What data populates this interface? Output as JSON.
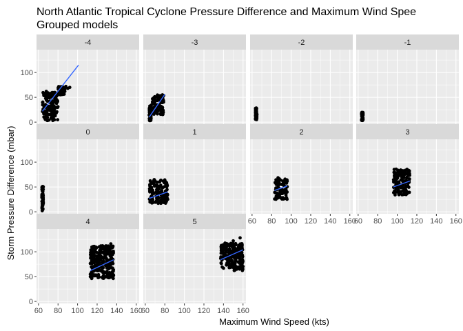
{
  "chart_data": {
    "type": "scatter",
    "title": "North Atlantic Tropical Cyclone Pressure Difference and Maximum Wind Spee",
    "subtitle": "Grouped models",
    "xlabel": "Maximum Wind Speed (kts)",
    "ylabel": "Storm Pressure Difference (mbar)",
    "xlim": [
      58,
      163
    ],
    "ylim": [
      -4,
      146
    ],
    "x_ticks": [
      60,
      80,
      100,
      120,
      140,
      160
    ],
    "y_ticks": [
      0,
      50,
      100
    ],
    "grid": true,
    "facet_layout": "4 columns, 3 rows",
    "facet_strip_color": "#d9d9d9",
    "panel_background": "#ebebeb",
    "point_color": "#000000",
    "fit_line_color": "#3366ff",
    "facets": [
      {
        "label": "-4",
        "clusters": [
          {
            "x": [
              64,
              80
            ],
            "y": [
              3,
              60
            ]
          },
          {
            "x": [
              80,
              87
            ],
            "y": [
              55,
              72
            ]
          }
        ],
        "extra_points": [
          [
            90,
            68
          ],
          [
            92,
            70
          ],
          [
            88,
            72
          ],
          [
            86,
            68
          ],
          [
            66,
            58
          ],
          [
            68,
            62
          ]
        ],
        "fit": [
          [
            64,
            22
          ],
          [
            101,
            115
          ]
        ]
      },
      {
        "label": "-3",
        "clusters": [
          {
            "x": [
              64,
              66
            ],
            "y": [
              3,
              33
            ]
          },
          {
            "x": [
              66,
              79
            ],
            "y": [
              15,
              55
            ]
          }
        ],
        "extra_points": [],
        "fit": [
          [
            64,
            10
          ],
          [
            80,
            56
          ]
        ]
      },
      {
        "label": "-2",
        "clusters": [
          {
            "x": [
              63.5,
              65
            ],
            "y": [
              5,
              30
            ]
          }
        ],
        "extra_points": [],
        "fit": null
      },
      {
        "label": "-1",
        "clusters": [
          {
            "x": [
              63.5,
              65
            ],
            "y": [
              3,
              20
            ]
          }
        ],
        "extra_points": [],
        "fit": null
      },
      {
        "label": "0",
        "clusters": [
          {
            "x": [
              63.5,
              65
            ],
            "y": [
              2,
              53
            ]
          }
        ],
        "extra_points": [],
        "fit": null
      },
      {
        "label": "1",
        "clusters": [
          {
            "x": [
              64,
              83
            ],
            "y": [
              17,
              65
            ]
          }
        ],
        "extra_points": [],
        "fit": [
          [
            64,
            27
          ],
          [
            83,
            40
          ]
        ]
      },
      {
        "label": "2",
        "clusters": [
          {
            "x": [
              83,
              96
            ],
            "y": [
              25,
              70
            ]
          }
        ],
        "extra_points": [],
        "fit": [
          [
            83,
            43
          ],
          [
            96,
            52
          ]
        ]
      },
      {
        "label": "3",
        "clusters": [
          {
            "x": [
              96,
              113
            ],
            "y": [
              34,
              86
            ]
          }
        ],
        "extra_points": [],
        "fit": [
          [
            96,
            50
          ],
          [
            113,
            62
          ]
        ]
      },
      {
        "label": "4",
        "clusters": [
          {
            "x": [
              113,
              137
            ],
            "y": [
              46,
              112
            ]
          }
        ],
        "extra_points": [
          [
            134,
            116
          ],
          [
            130,
            108
          ]
        ],
        "fit": [
          [
            113,
            62
          ],
          [
            137,
            84
          ]
        ]
      },
      {
        "label": "5",
        "clusters": [
          {
            "x": [
              137,
              160
            ],
            "y": [
              62,
              118
            ]
          }
        ],
        "extra_points": [
          [
            157,
            128
          ],
          [
            150,
            122
          ]
        ],
        "fit": [
          [
            137,
            84
          ],
          [
            160,
            104
          ]
        ]
      }
    ]
  }
}
